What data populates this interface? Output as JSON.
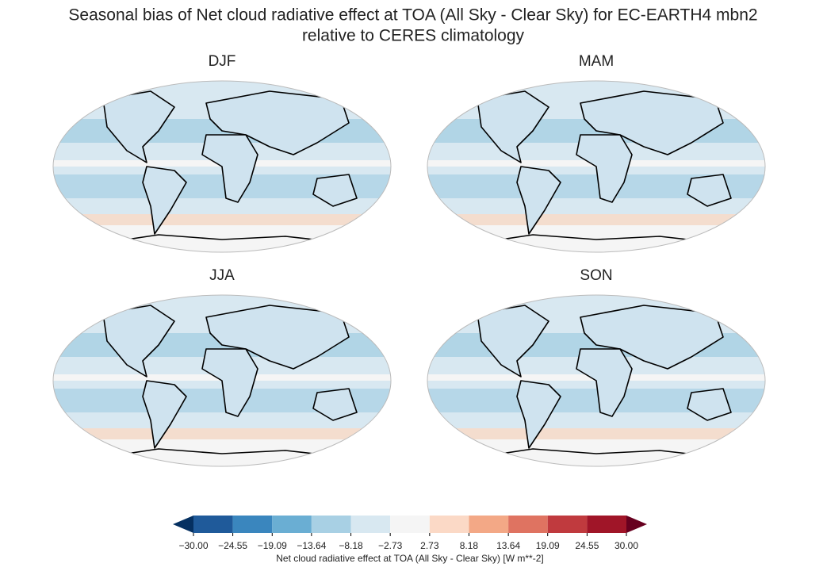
{
  "title_lines": [
    "Seasonal bias of Net cloud radiative effect at TOA (All Sky - Clear Sky) for EC-EARTH4 mbn2",
    "relative to CERES climatology"
  ],
  "panels": [
    {
      "title": "DJF"
    },
    {
      "title": "MAM"
    },
    {
      "title": "JJA"
    },
    {
      "title": "SON"
    }
  ],
  "colorbar": {
    "label": "Net cloud radiative effect at TOA (All Sky - Clear Sky) [W m**-2]",
    "ticks": [
      {
        "value": -30,
        "label": "−30.00"
      },
      {
        "value": -24.55,
        "label": "−24.55"
      },
      {
        "value": -19.09,
        "label": "−19.09"
      },
      {
        "value": -13.64,
        "label": "−13.64"
      },
      {
        "value": -8.18,
        "label": "−8.18"
      },
      {
        "value": -2.73,
        "label": "−2.73"
      },
      {
        "value": 2.73,
        "label": "2.73"
      },
      {
        "value": 8.18,
        "label": "8.18"
      },
      {
        "value": 13.64,
        "label": "13.64"
      },
      {
        "value": 19.09,
        "label": "19.09"
      },
      {
        "value": 24.55,
        "label": "24.55"
      },
      {
        "value": 30,
        "label": "30.00"
      }
    ],
    "colors": [
      "#1f5a9a",
      "#3a86be",
      "#6aaed3",
      "#a8d0e4",
      "#d8e8f1",
      "#f5f5f5",
      "#fbd9c6",
      "#f3a886",
      "#df7361",
      "#c03a3e",
      "#a01528"
    ],
    "under_color": "#053061",
    "over_color": "#67001f"
  }
}
